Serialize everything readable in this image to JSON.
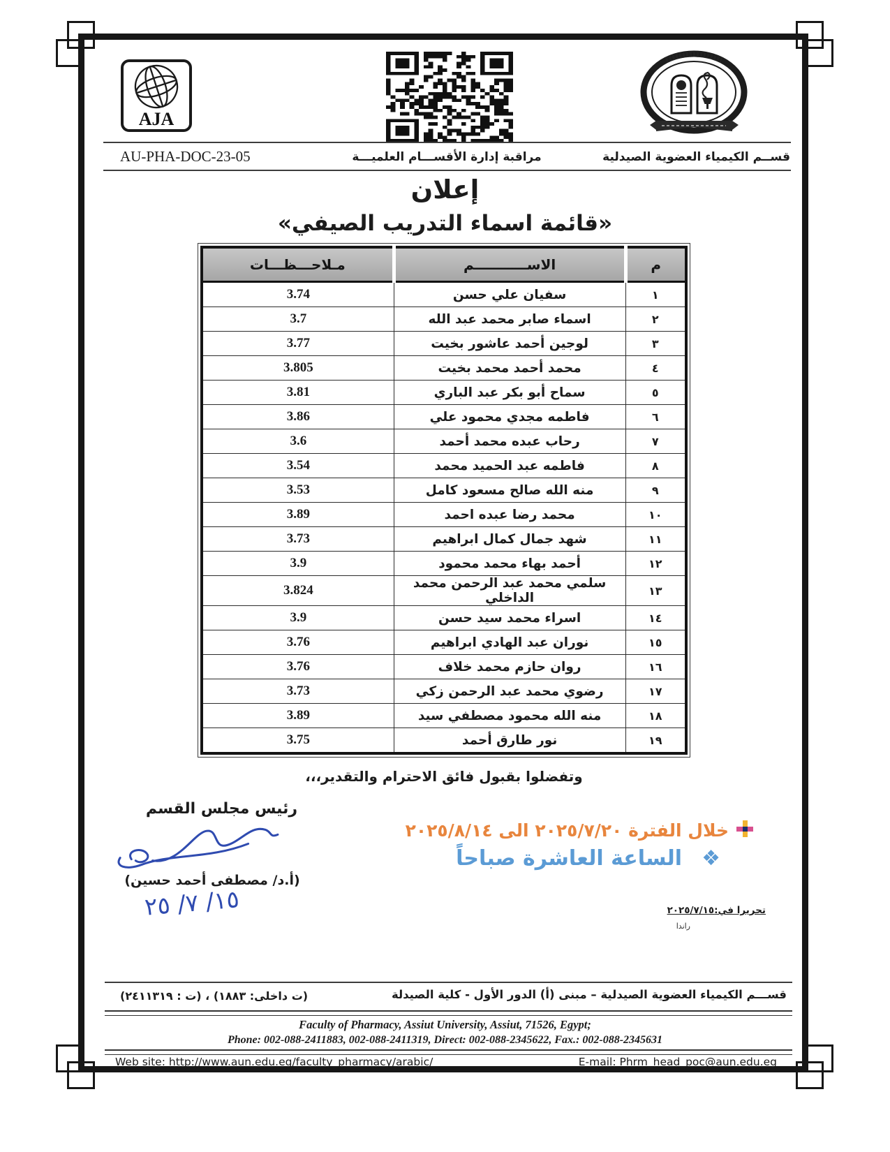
{
  "header": {
    "doc_code": "AU-PHA-DOC-23-05",
    "center_label": "مراقبة إدارة الأقســـام العلميـــة",
    "dept_label": "قســم الكيمياء العضوية الصيدلية",
    "aja_text": "AJA"
  },
  "title": {
    "main": "إعلان",
    "subtitle": "«قائمة اسماء التدريب الصيفي»"
  },
  "table": {
    "headers": {
      "notes": "مـلاحـــظـــات",
      "name": "الاســـــــــــم",
      "num": "م"
    },
    "rows": [
      {
        "no": "١",
        "name": "سفيان علي حسن",
        "note": "3.74"
      },
      {
        "no": "٢",
        "name": "اسماء صابر محمد عبد الله",
        "note": "3.7"
      },
      {
        "no": "٣",
        "name": "لوجين أحمد عاشور بخيت",
        "note": "3.77"
      },
      {
        "no": "٤",
        "name": "محمد أحمد محمد بخيت",
        "note": "3.805"
      },
      {
        "no": "٥",
        "name": "سماح أبو بكر عبد الباري",
        "note": "3.81"
      },
      {
        "no": "٦",
        "name": "فاطمه مجدي محمود علي",
        "note": "3.86"
      },
      {
        "no": "٧",
        "name": "رحاب عبده محمد أحمد",
        "note": "3.6"
      },
      {
        "no": "٨",
        "name": "فاطمه عبد الحميد محمد",
        "note": "3.54"
      },
      {
        "no": "٩",
        "name": "منه الله صالح مسعود كامل",
        "note": "3.53"
      },
      {
        "no": "١٠",
        "name": "محمد رضا عبده احمد",
        "note": "3.89"
      },
      {
        "no": "١١",
        "name": "شهد جمال كمال ابراهيم",
        "note": "3.73"
      },
      {
        "no": "١٢",
        "name": "أحمد بهاء محمد محمود",
        "note": "3.9"
      },
      {
        "no": "١٣",
        "name": "سلمي محمد عبد الرحمن محمد الداخلي",
        "note": "3.824"
      },
      {
        "no": "١٤",
        "name": "اسراء محمد سيد حسن",
        "note": "3.9"
      },
      {
        "no": "١٥",
        "name": "نوران عبد الهادي ابراهيم",
        "note": "3.76"
      },
      {
        "no": "١٦",
        "name": "روان حازم محمد خلاف",
        "note": "3.76"
      },
      {
        "no": "١٧",
        "name": "رضوي محمد عبد الرحمن زكي",
        "note": "3.73"
      },
      {
        "no": "١٨",
        "name": "منه الله محمود مصطفي سيد",
        "note": "3.89"
      },
      {
        "no": "١٩",
        "name": "نور طارق أحمد",
        "note": "3.75"
      }
    ]
  },
  "closing": "وتفضلوا بقبول فائق الاحترام والتقدير،،،",
  "signature": {
    "title": "رئيس مجلس القسم",
    "name": "(أ.د/ مصطفى أحمد حسين)",
    "handwritten_date": "١٥/ ٧/ ٢٥",
    "ink_color": "#2f4bb0"
  },
  "notes": {
    "period_text": "خلال الفترة ٢٠٢٥/٧/٢٠ الى ٢٠٢٥/٨/١٤",
    "period_color": "#e8853d",
    "time_text": "الساعة العاشرة صباحاً",
    "time_color": "#5b9bd5"
  },
  "issued": {
    "label": "تحريرا في:٢٠٢٥/٧/١٥",
    "byline": "راندا"
  },
  "footer": {
    "dept_line": "قســـم الكيمياء العضوية الصيدلية – مبنى (أ) الدور الأول - كلية الصيدلة",
    "phone_ar": "(ت داخلى: ١٨٨٣) ، (ت : ٢٤١١٣١٩)",
    "address_en": "Faculty of Pharmacy, Assiut University, Assiut, 71526, Egypt;",
    "phones_en": "Phone: 002-088-2411883,    002-088-2411319,    Direct: 002-088-2345622,    Fax.: 002-088-2345631",
    "website": "Web site: http://www.aun.edu.eg/faculty_pharmacy/arabic/",
    "email": "E-mail: Phrm_head_poc@aun.edu.eg"
  }
}
